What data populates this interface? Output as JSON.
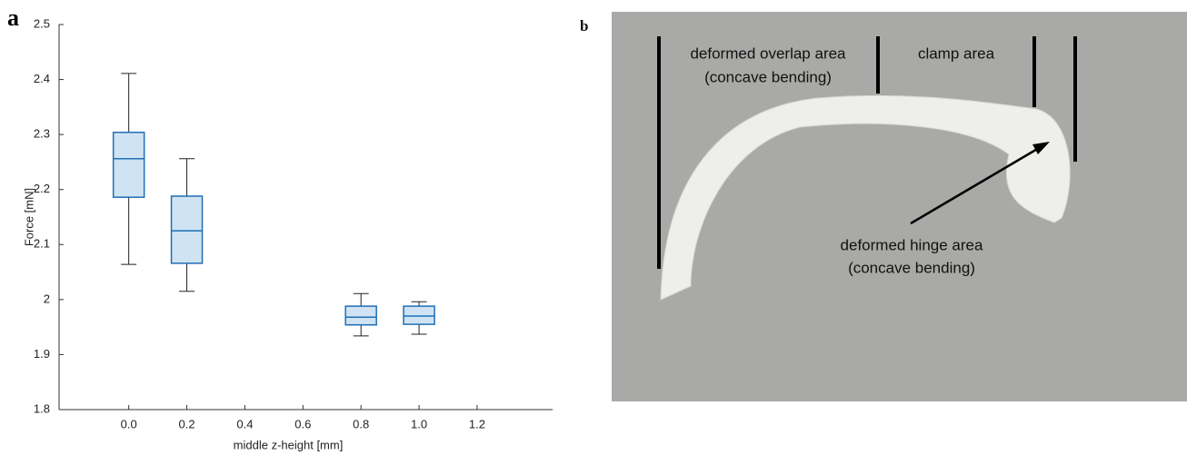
{
  "chart_data": {
    "type": "box",
    "panel_label": "a",
    "x_label": "middle z-height [mm]",
    "y_label": "Force [mN]",
    "x": [
      0,
      0.2,
      0.8,
      1
    ],
    "series": [
      {
        "color": "#1f6fb4",
        "fill": "#cfe3f2",
        "whisker_color": "#222222",
        "min": [
          2.064,
          2.015,
          1.934,
          1.937
        ],
        "q1": [
          2.186,
          2.066,
          1.954,
          1.955
        ],
        "median": [
          2.256,
          2.125,
          1.968,
          1.97
        ],
        "q3": [
          2.304,
          2.188,
          1.988,
          1.988
        ],
        "max": [
          2.411,
          2.256,
          2.011,
          1.996
        ]
      }
    ],
    "xlim": [
      -0.24,
      1.46
    ],
    "ylim": [
      1.8,
      2.5
    ],
    "xticks": [
      {
        "value": 0,
        "label": "0.0"
      },
      0.2,
      0.4,
      0.6,
      0.8,
      {
        "value": 1,
        "label": "1.0"
      },
      1.2
    ],
    "yticks": [
      1.8,
      1.9,
      2,
      2.1,
      2.2,
      2.3,
      2.4,
      2.5
    ]
  },
  "photo": {
    "panel_label": "b",
    "labels": [
      "deformed overlap area",
      "(concave bending)",
      "clamp area",
      "deformed hinge area",
      "(concave bending)"
    ]
  }
}
